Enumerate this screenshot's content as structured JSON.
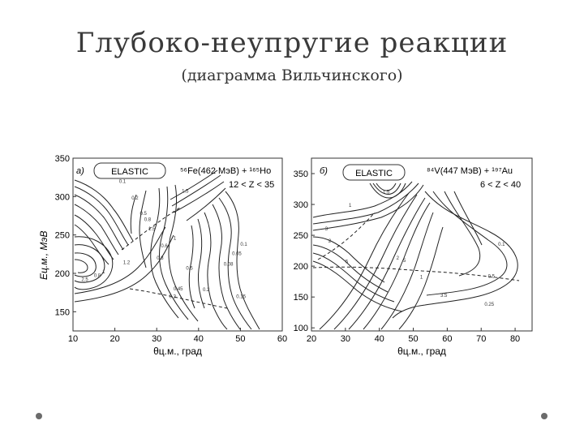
{
  "slide": {
    "title": "Глубоко-неупругие реакции",
    "subtitle": "(диаграмма Вильчинского)"
  },
  "chart_data": [
    {
      "type": "contour",
      "panel_label": "а)",
      "box_label": "ELASTIC",
      "reaction": "⁵⁶Fe(462 МэВ) + ¹⁶⁵Ho",
      "z_range": "12 < Z < 35",
      "xlabel": "θц.м., град",
      "ylabel": "Eц.м., МэВ",
      "xlim": [
        10,
        60
      ],
      "ylim": [
        125,
        350
      ],
      "x_ticks": [
        10,
        20,
        30,
        40,
        50,
        60
      ],
      "y_ticks": [
        150,
        200,
        250,
        300,
        350
      ],
      "contour_labels": [
        {
          "text": "0.1",
          "x": 21,
          "y": 318
        },
        {
          "text": "0.2",
          "x": 24,
          "y": 296
        },
        {
          "text": "0.5",
          "x": 26,
          "y": 276
        },
        {
          "text": "0.8",
          "x": 27,
          "y": 268
        },
        {
          "text": "1.5",
          "x": 28,
          "y": 256
        },
        {
          "text": "1.5",
          "x": 36,
          "y": 305
        },
        {
          "text": "0.6",
          "x": 31,
          "y": 234
        },
        {
          "text": "1",
          "x": 34,
          "y": 244
        },
        {
          "text": "1.2",
          "x": 22,
          "y": 212
        },
        {
          "text": "1",
          "x": 17,
          "y": 200
        },
        {
          "text": "0.8",
          "x": 15,
          "y": 195
        },
        {
          "text": "2.5",
          "x": 12,
          "y": 190
        },
        {
          "text": "0.8",
          "x": 30,
          "y": 218
        },
        {
          "text": "0.45",
          "x": 34,
          "y": 178
        },
        {
          "text": "0.3",
          "x": 33,
          "y": 168
        },
        {
          "text": "0.2",
          "x": 41,
          "y": 177
        },
        {
          "text": "0.15",
          "x": 49,
          "y": 168
        },
        {
          "text": "0.08",
          "x": 46,
          "y": 210
        },
        {
          "text": "0.05",
          "x": 48,
          "y": 224
        },
        {
          "text": "0.5",
          "x": 37,
          "y": 205
        },
        {
          "text": "0.1",
          "x": 50,
          "y": 236
        }
      ]
    },
    {
      "type": "contour",
      "panel_label": "б)",
      "box_label": "ELASTIC",
      "reaction": "⁸⁴V(447 МэВ) + ¹⁹⁷Au",
      "z_range": "6 < Z < 40",
      "xlabel": "θц.м., град",
      "ylabel": "",
      "xlim": [
        20,
        85
      ],
      "ylim": [
        95,
        375
      ],
      "x_ticks": [
        20,
        30,
        40,
        50,
        60,
        70,
        80
      ],
      "y_ticks": [
        100,
        150,
        200,
        250,
        300,
        350
      ],
      "contour_labels": [
        {
          "text": "1.5",
          "x": 41,
          "y": 318
        },
        {
          "text": "1",
          "x": 31,
          "y": 296
        },
        {
          "text": "3",
          "x": 24,
          "y": 258
        },
        {
          "text": "2",
          "x": 25,
          "y": 238
        },
        {
          "text": "5",
          "x": 30,
          "y": 205
        },
        {
          "text": "2",
          "x": 45,
          "y": 211
        },
        {
          "text": "5",
          "x": 47,
          "y": 207
        },
        {
          "text": "1",
          "x": 52,
          "y": 180
        },
        {
          "text": "3.5",
          "x": 58,
          "y": 150
        },
        {
          "text": "0.1",
          "x": 75,
          "y": 233
        },
        {
          "text": "0.5",
          "x": 72,
          "y": 181
        },
        {
          "text": "0.25",
          "x": 71,
          "y": 136
        }
      ]
    }
  ]
}
